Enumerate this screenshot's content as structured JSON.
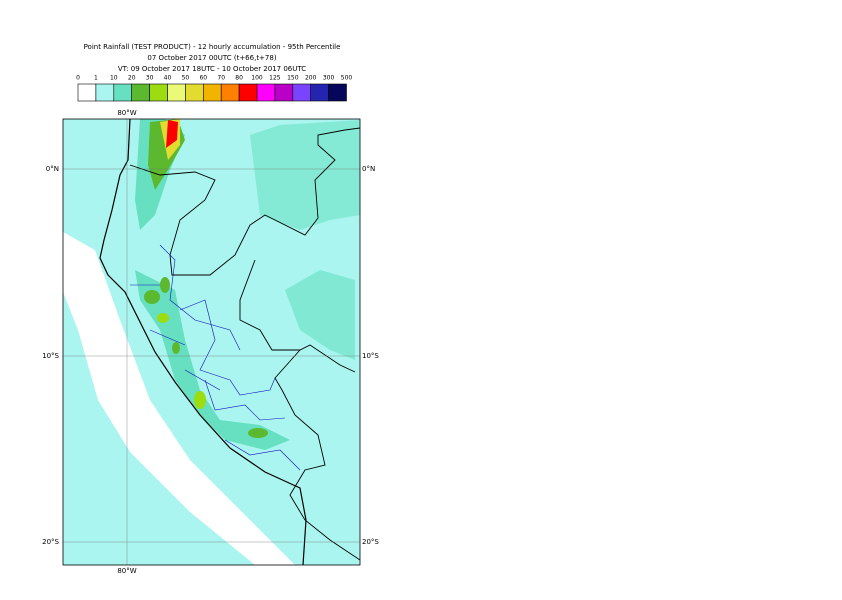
{
  "header": {
    "title": "Point Rainfall (TEST PRODUCT) - 12 hourly accumulation - 95th Percentile",
    "base_time": "07 October 2017 00UTC (t+66,t+78)",
    "valid_time": "VT: 09 October 2017 18UTC - 10 October 2017 06UTC"
  },
  "legend": {
    "labels": [
      "0",
      "1",
      "10",
      "20",
      "30",
      "40",
      "50",
      "60",
      "70",
      "80",
      "100",
      "125",
      "150",
      "200",
      "300",
      "500"
    ],
    "colors": [
      "#ffffff",
      "#aaf5ef",
      "#66e0c0",
      "#5cb82e",
      "#9ddc10",
      "#eafa78",
      "#e2dc30",
      "#f2b400",
      "#ff8000",
      "#ff0000",
      "#ff00ff",
      "#b800c8",
      "#7a44ff",
      "#2424b0",
      "#06065a"
    ]
  },
  "axes": {
    "top": [
      "80°W"
    ],
    "bottom": [
      "80°W"
    ],
    "left": [
      "0°N",
      "10°S",
      "20°S"
    ],
    "right": [
      "0°N",
      "10°S",
      "20°S"
    ]
  }
}
